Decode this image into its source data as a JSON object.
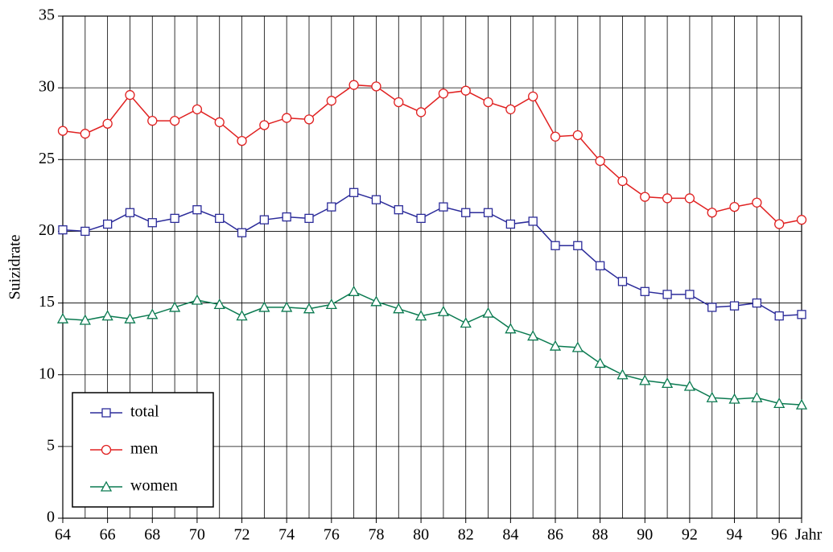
{
  "chart_data": {
    "type": "line",
    "y_label": "Suizidrate",
    "x": [
      64,
      65,
      66,
      67,
      68,
      69,
      70,
      71,
      72,
      73,
      74,
      75,
      76,
      77,
      78,
      79,
      80,
      81,
      82,
      83,
      84,
      85,
      86,
      87,
      88,
      89,
      90,
      91,
      92,
      93,
      94,
      95,
      96,
      97
    ],
    "series": [
      {
        "name": "total",
        "color": "#2b2b9a",
        "marker": "square",
        "values": [
          20.1,
          20.0,
          20.5,
          21.3,
          20.6,
          20.9,
          21.5,
          20.9,
          19.9,
          20.8,
          21.0,
          20.9,
          21.7,
          22.7,
          22.2,
          21.5,
          20.9,
          21.7,
          21.3,
          21.3,
          20.5,
          20.7,
          19.0,
          19.0,
          17.6,
          16.5,
          15.8,
          15.6,
          15.6,
          14.7,
          14.8,
          15.0,
          14.1,
          14.2
        ]
      },
      {
        "name": "men",
        "color": "#e02020",
        "marker": "circle",
        "values": [
          27.0,
          26.8,
          27.5,
          29.5,
          27.7,
          27.7,
          28.5,
          27.6,
          26.3,
          27.4,
          27.9,
          27.8,
          29.1,
          30.2,
          30.1,
          29.0,
          28.3,
          29.6,
          29.8,
          29.0,
          28.5,
          29.4,
          26.6,
          26.7,
          24.9,
          23.5,
          22.4,
          22.3,
          22.3,
          21.3,
          21.7,
          22.0,
          20.5,
          20.8
        ]
      },
      {
        "name": "women",
        "color": "#0a7a50",
        "marker": "triangle",
        "values": [
          13.9,
          13.8,
          14.1,
          13.9,
          14.2,
          14.7,
          15.2,
          14.9,
          14.1,
          14.7,
          14.7,
          14.6,
          14.9,
          15.8,
          15.1,
          14.6,
          14.1,
          14.4,
          13.6,
          14.3,
          13.2,
          12.7,
          12.0,
          11.9,
          10.8,
          10.0,
          9.6,
          9.4,
          9.2,
          8.4,
          8.3,
          8.4,
          8.0,
          7.9
        ]
      }
    ],
    "xlim": [
      64,
      97
    ],
    "xticks": [
      64,
      66,
      68,
      70,
      72,
      74,
      76,
      78,
      80,
      82,
      84,
      86,
      88,
      90,
      92,
      94,
      96,
      {
        "value": 97,
        "label": "Jahr"
      }
    ],
    "ylim": [
      0,
      35
    ],
    "yticks": [
      0,
      5,
      10,
      15,
      20,
      25,
      30,
      35
    ],
    "grid": true,
    "legend": "lower left"
  }
}
